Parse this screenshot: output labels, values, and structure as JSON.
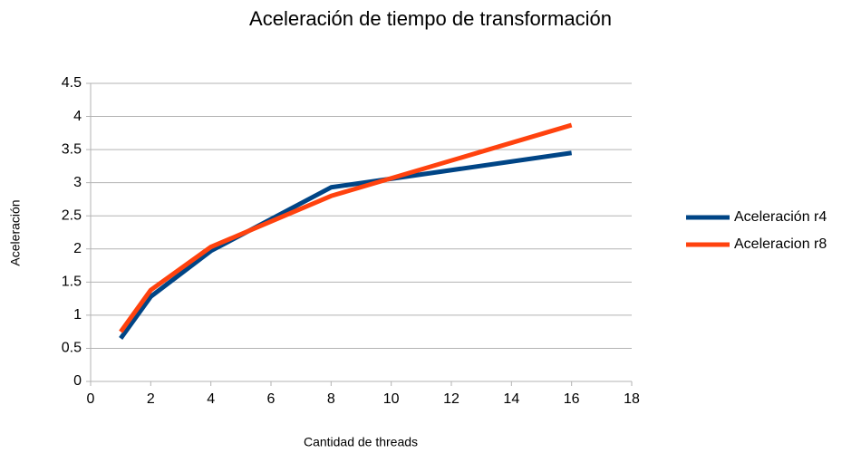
{
  "chart_data": {
    "type": "line",
    "title": "Aceleración de tiempo de transformación",
    "x_label": "Cantidad de threads",
    "y_label": "Aceleración",
    "x": [
      1,
      2,
      4,
      8,
      16
    ],
    "series": [
      {
        "name": "Aceleración r4",
        "color": "#004586",
        "values": [
          0.65,
          1.28,
          1.97,
          2.93,
          3.45
        ]
      },
      {
        "name": "Aceleracion r8",
        "color": "#ff420e",
        "values": [
          0.75,
          1.38,
          2.03,
          2.8,
          3.87
        ]
      }
    ],
    "xlim": [
      0,
      18
    ],
    "xticks": [
      0,
      2,
      4,
      6,
      8,
      10,
      12,
      14,
      16,
      18
    ],
    "ylim": [
      0,
      4.5
    ],
    "yticks": [
      0,
      0.5,
      1,
      1.5,
      2,
      2.5,
      3,
      3.5,
      4,
      4.5
    ],
    "grid": true,
    "legend": "right"
  }
}
